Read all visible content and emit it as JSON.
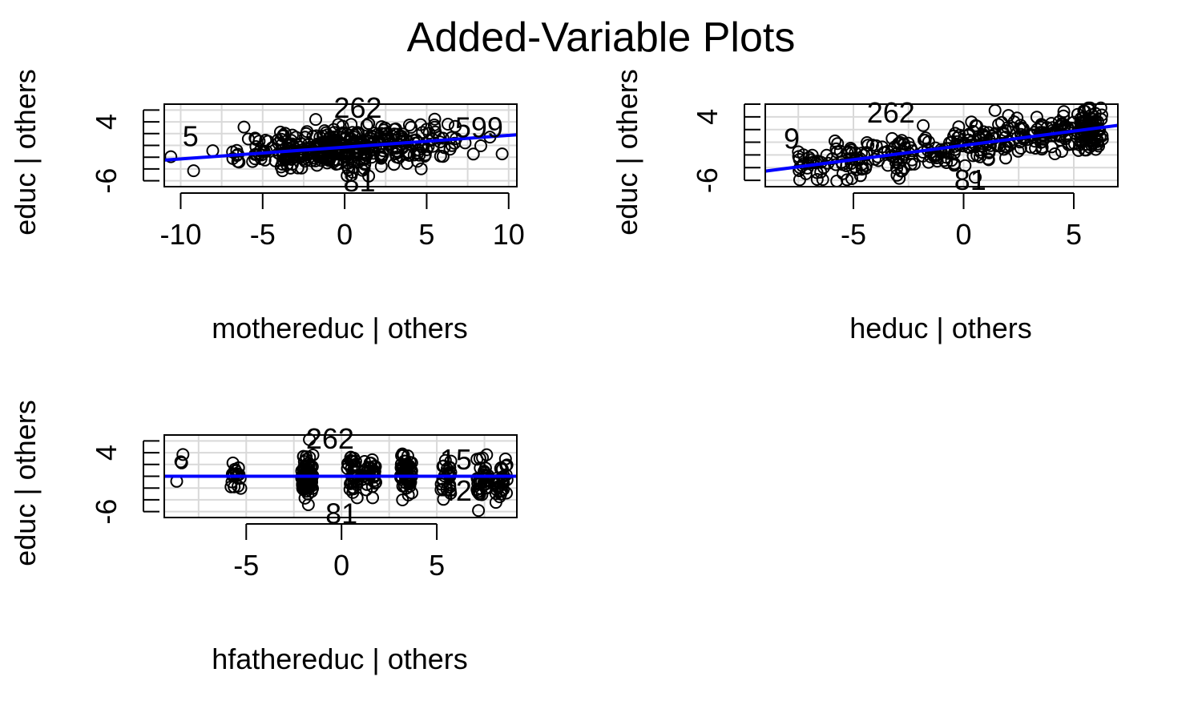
{
  "title": "Added-Variable Plots",
  "colors": {
    "fit_line": "#0000ff",
    "grid": "#d9d9d9",
    "points": "#000000"
  },
  "chart_data": [
    {
      "type": "scatter",
      "xlabel": "mothereduc | others",
      "ylabel": "educ  | others",
      "xlim": [
        -11,
        10.5
      ],
      "ylim": [
        -7,
        7
      ],
      "xticks": [
        -10,
        -5,
        0,
        5,
        10
      ],
      "xtick_labels": [
        "-10",
        "-5",
        "0",
        "5",
        "10"
      ],
      "yticks": [
        -6,
        4
      ],
      "ytick_labels": [
        "-6",
        "4"
      ],
      "fit": {
        "slope": 0.2,
        "intercept": -0.3
      },
      "grid": true,
      "labels": [
        {
          "text": "262",
          "x": 0.8,
          "y": 6.3
        },
        {
          "text": "599",
          "x": 8.2,
          "y": 3.0
        },
        {
          "text": "5",
          "x": -9.4,
          "y": 1.5
        },
        {
          "text": "81",
          "x": 0.9,
          "y": -6.2
        }
      ]
    },
    {
      "type": "scatter",
      "xlabel": "heduc | others",
      "ylabel": "educ  | others",
      "xlim": [
        -9,
        7
      ],
      "ylim": [
        -7,
        6
      ],
      "xticks": [
        -5,
        0,
        5
      ],
      "xtick_labels": [
        "-5",
        "0",
        "5"
      ],
      "yticks": [
        -6,
        4
      ],
      "ytick_labels": [
        "-6",
        "4"
      ],
      "fit": {
        "slope": 0.45,
        "intercept": -0.5
      },
      "grid": true,
      "labels": [
        {
          "text": "262",
          "x": -3.3,
          "y": 4.6
        },
        {
          "text": "9",
          "x": -7.8,
          "y": 0.5
        },
        {
          "text": "81",
          "x": 0.3,
          "y": -6.0
        }
      ]
    },
    {
      "type": "scatter",
      "xlabel": "hfathereduc | others",
      "ylabel": "educ  | others",
      "xlim": [
        -9.3,
        9.2
      ],
      "ylim": [
        -7,
        7
      ],
      "xticks": [
        -5,
        0,
        5
      ],
      "xtick_labels": [
        "-5",
        "0",
        "5"
      ],
      "yticks": [
        -6,
        4
      ],
      "ytick_labels": [
        "-6",
        "4"
      ],
      "fit": {
        "slope": 0.0,
        "intercept": 0.0
      },
      "grid": true,
      "labels": [
        {
          "text": "262",
          "x": -0.6,
          "y": 6.3
        },
        {
          "text": "15",
          "x": 6.0,
          "y": 2.8
        },
        {
          "text": "42",
          "x": 6.0,
          "y": -2.5
        },
        {
          "text": "81",
          "x": 0.0,
          "y": -6.4
        }
      ]
    }
  ]
}
